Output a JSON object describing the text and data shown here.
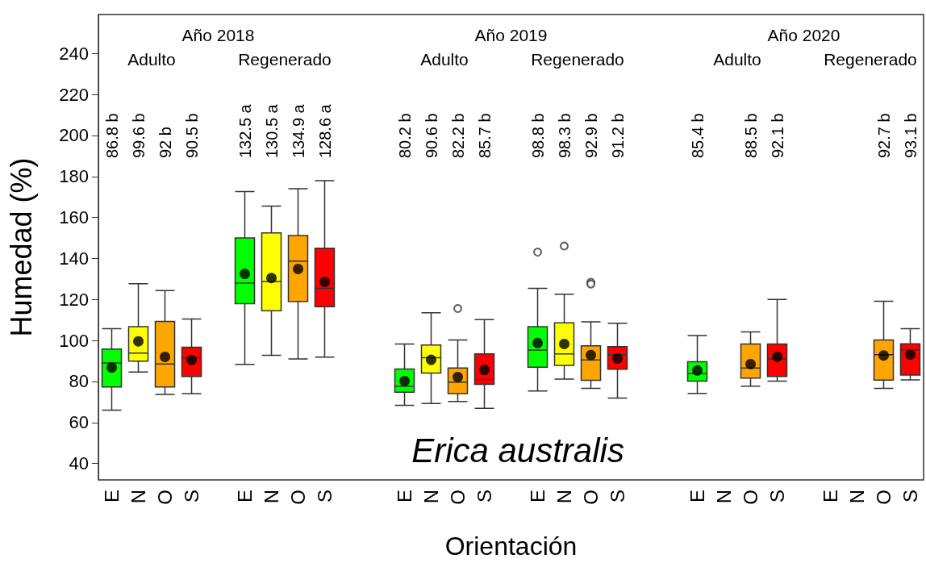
{
  "chart_data": {
    "type": "box",
    "xlabel": "Orientación",
    "ylabel": "Humedad (%)",
    "annotations": [
      "Año 2018",
      "Adulto",
      "Regenerado",
      "Año 2019",
      "Adulto",
      "Regenerado",
      "Año 2020",
      "Adulto",
      "Regenerado",
      "Erica australis",
      "86.8 b",
      "99.6 b",
      "92 b",
      "90.5 b",
      "132.5 a",
      "130.5 a",
      "134.9 a",
      "128.6 a",
      "80.2 b",
      "90.6 b",
      "82.2 b",
      "85.7 b",
      "98.8 b",
      "98.3 b",
      "92.9 b",
      "91.2 b",
      "85.4 b",
      "88.5 b",
      "92.1 b",
      "92.7 b",
      "93.1 b"
    ],
    "categories": [
      "E",
      "N",
      "O",
      "S",
      null,
      "E",
      "N",
      "O",
      "S",
      null,
      null,
      "E",
      "N",
      "O",
      "S",
      null,
      "E",
      "N",
      "O",
      "S",
      null,
      null,
      "E",
      "N",
      "O",
      "S",
      null,
      "E",
      "N",
      "O",
      "S"
    ],
    "colors": [
      "#00ff00",
      "#ffff00",
      "#ffa500",
      "#ff0000",
      null,
      "#00ff00",
      "#ffff00",
      "#ffa500",
      "#ff0000",
      null,
      null,
      "#00ff00",
      "#ffff00",
      "#ffa500",
      "#ff0000",
      null,
      "#00ff00",
      "#ffff00",
      "#ffa500",
      "#ff0000",
      null,
      null,
      "#00ff00",
      null,
      "#ffa500",
      "#ff0000",
      null,
      null,
      null,
      "#ffa500",
      "#ff0000"
    ],
    "boxes": [
      {
        "low": 66,
        "q1": 77.3,
        "median": 89,
        "q3": 95.8,
        "high": 105.8
      },
      {
        "low": 84.6,
        "q1": 89.9,
        "median": 93.9,
        "q3": 106.7,
        "high": 127.7
      },
      {
        "low": 73.7,
        "q1": 77.3,
        "median": 88.6,
        "q3": 109.3,
        "high": 124.4
      },
      {
        "low": 74.1,
        "q1": 82.5,
        "median": 91.6,
        "q3": 96.7,
        "high": 110.5
      },
      null,
      {
        "low": 88.4,
        "q1": 118,
        "median": 128,
        "q3": 150,
        "high": 172.6
      },
      {
        "low": 92.8,
        "q1": 114.5,
        "median": 128.8,
        "q3": 152.5,
        "high": 165.6
      },
      {
        "low": 91,
        "q1": 119,
        "median": 138.7,
        "q3": 151.2,
        "high": 174
      },
      {
        "low": 91.9,
        "q1": 116.5,
        "median": 125.4,
        "q3": 145,
        "high": 178
      },
      null,
      null,
      {
        "low": 68.4,
        "q1": 74.8,
        "median": 77.7,
        "q3": 86.1,
        "high": 98.3
      },
      {
        "low": 69.3,
        "q1": 84.1,
        "median": 91.6,
        "q3": 97.8,
        "high": 113.5
      },
      {
        "low": 70.3,
        "q1": 74.1,
        "median": 79.7,
        "q3": 86.6,
        "high": 100.3,
        "outliers": [
          115.6
        ]
      },
      {
        "low": 66.9,
        "q1": 78.6,
        "median": 81,
        "q3": 93.5,
        "high": 110.2
      },
      null,
      {
        "low": 75.4,
        "q1": 87,
        "median": 95.3,
        "q3": 106.7,
        "high": 125.4,
        "outliers": [
          143.1
        ]
      },
      {
        "low": 81.2,
        "q1": 87.9,
        "median": 93.5,
        "q3": 108.6,
        "high": 122.6,
        "outliers": [
          146.1
        ]
      },
      {
        "low": 76.7,
        "q1": 80.6,
        "median": 90.5,
        "q3": 97.4,
        "high": 109.1,
        "outliers": [
          128.4,
          127.5
        ]
      },
      {
        "low": 71.9,
        "q1": 86,
        "median": 93.1,
        "q3": 97,
        "high": 108.4
      },
      null,
      null,
      {
        "low": 74.2,
        "q1": 80.2,
        "median": 83.8,
        "q3": 89.6,
        "high": 102.4
      },
      null,
      {
        "low": 77.7,
        "q1": 81.7,
        "median": 86.6,
        "q3": 98.3,
        "high": 104.2
      },
      {
        "low": 80.2,
        "q1": 82.5,
        "median": 91,
        "q3": 98.3,
        "high": 120
      },
      null,
      null,
      null,
      {
        "low": 76.7,
        "q1": 80.7,
        "median": 93.1,
        "q3": 100.3,
        "high": 119.1
      },
      {
        "low": 80.8,
        "q1": 83.1,
        "median": 95.4,
        "q3": 98.4,
        "high": 105.8
      }
    ],
    "series": [
      {
        "type": "scatter",
        "color": "#000000",
        "values": [
          86.8,
          99.6,
          92,
          90.5,
          null,
          132.5,
          130.5,
          134.9,
          128.6,
          null,
          null,
          80.2,
          90.6,
          82.2,
          85.7,
          null,
          98.8,
          98.3,
          92.9,
          91.2,
          null,
          null,
          85.4,
          null,
          88.5,
          92.1,
          null,
          null,
          null,
          92.7,
          93.1
        ]
      }
    ],
    "marker": "circle",
    "ylim": [
      32,
      259
    ],
    "yticks": [
      40,
      60,
      80,
      100,
      120,
      140,
      160,
      180,
      200,
      220,
      240
    ],
    "grid": false
  }
}
